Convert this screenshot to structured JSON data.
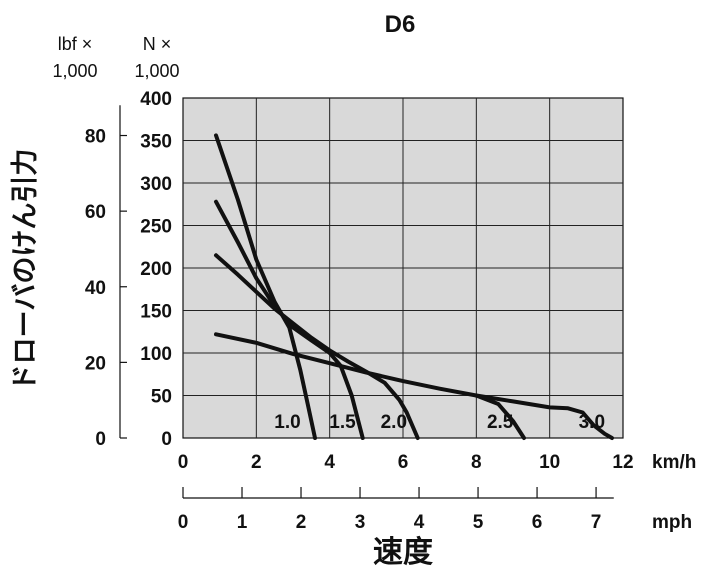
{
  "chart_data": {
    "type": "line",
    "title": "D6",
    "ylabel": "ドローバのけん引力",
    "xlabel": "速度",
    "y_left_header": [
      "lbf ×",
      "1,000"
    ],
    "y_right_header": [
      "N ×",
      "1,000"
    ],
    "y_unit_lbf_ticks": [
      "0",
      "20",
      "40",
      "60",
      "80"
    ],
    "y_unit_N_ticks": [
      "0",
      "50",
      "100",
      "150",
      "200",
      "250",
      "300",
      "350",
      "400"
    ],
    "x_kmh_ticks": [
      "0",
      "2",
      "4",
      "6",
      "8",
      "10",
      "12"
    ],
    "x_kmh_unit": "km/h",
    "x_mph_ticks": [
      "0",
      "1",
      "2",
      "3",
      "4",
      "5",
      "6",
      "7"
    ],
    "x_mph_unit": "mph",
    "xlim": [
      0,
      12
    ],
    "ylim": [
      0,
      400
    ],
    "grid": true,
    "series": [
      {
        "name": "1.0",
        "points": [
          [
            0.9,
            356
          ],
          [
            1.5,
            280
          ],
          [
            2.0,
            210
          ],
          [
            2.5,
            160
          ],
          [
            2.9,
            130
          ],
          [
            3.2,
            80
          ],
          [
            3.4,
            40
          ],
          [
            3.6,
            0
          ]
        ]
      },
      {
        "name": "1.5",
        "points": [
          [
            0.9,
            278
          ],
          [
            1.5,
            230
          ],
          [
            2.0,
            188
          ],
          [
            2.5,
            155
          ],
          [
            3.0,
            130
          ],
          [
            3.5,
            115
          ],
          [
            4.0,
            100
          ],
          [
            4.3,
            85
          ],
          [
            4.6,
            50
          ],
          [
            4.9,
            0
          ]
        ]
      },
      {
        "name": "2.0",
        "points": [
          [
            0.9,
            215
          ],
          [
            1.5,
            192
          ],
          [
            2.0,
            172
          ],
          [
            2.5,
            152
          ],
          [
            3.0,
            135
          ],
          [
            3.5,
            118
          ],
          [
            4.0,
            103
          ],
          [
            4.5,
            90
          ],
          [
            5.0,
            78
          ],
          [
            5.5,
            65
          ],
          [
            5.9,
            45
          ],
          [
            6.1,
            30
          ],
          [
            6.4,
            0
          ]
        ]
      },
      {
        "name": "2.5",
        "points": [
          [
            0.9,
            122
          ],
          [
            2.0,
            112
          ],
          [
            3.0,
            99
          ],
          [
            4.0,
            88
          ],
          [
            5.0,
            77
          ],
          [
            6.0,
            67
          ],
          [
            7.0,
            58
          ],
          [
            8.0,
            50
          ],
          [
            8.6,
            40
          ],
          [
            9.0,
            20
          ],
          [
            9.3,
            0
          ]
        ]
      },
      {
        "name": "3.0",
        "points": [
          [
            8.0,
            50
          ],
          [
            9.0,
            43
          ],
          [
            10.0,
            36
          ],
          [
            10.5,
            35
          ],
          [
            10.9,
            30
          ],
          [
            11.2,
            15
          ],
          [
            11.5,
            5
          ],
          [
            11.7,
            0
          ]
        ]
      }
    ]
  }
}
